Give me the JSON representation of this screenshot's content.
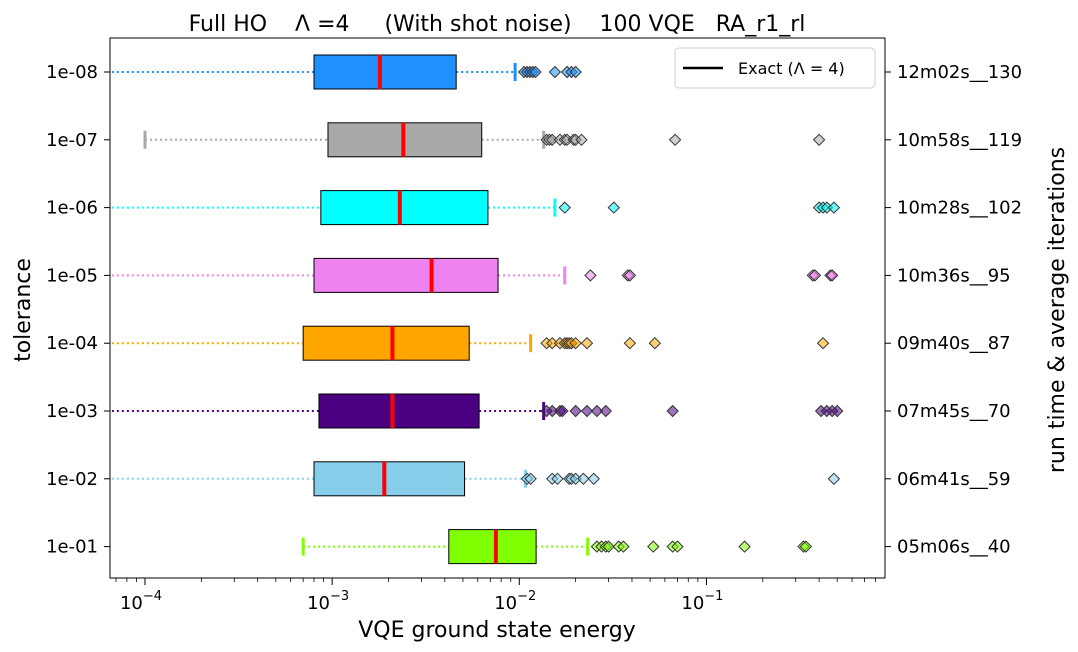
{
  "chart_data": {
    "type": "boxplot",
    "title": "Full HO    Λ =4     (With shot noise)    100 VQE   RA_r1_rl",
    "xlabel": "VQE ground state energy",
    "ylabel": "tolerance",
    "ylabel_right": "run time & average iterations",
    "xscale": "log",
    "xlim": [
      6.5e-05,
      0.9
    ],
    "x_ticks": [
      {
        "value": 0.0001,
        "base": "10",
        "exp": "−4"
      },
      {
        "value": 0.001,
        "base": "10",
        "exp": "−3"
      },
      {
        "value": 0.01,
        "base": "10",
        "exp": "−2"
      },
      {
        "value": 0.1,
        "base": "10",
        "exp": "−1"
      }
    ],
    "legend": {
      "position": "top-right",
      "entries": [
        {
          "label": "Exact (Λ = 4)",
          "color": "#000000"
        }
      ]
    },
    "series": [
      {
        "tolerance": "1e-08",
        "right_label": "12m02s__130",
        "color": "#1e90ff",
        "whisker_low": 6.65e-05,
        "q1": 0.0008,
        "median": 0.0018,
        "q3": 0.0046,
        "whisker_high": 0.0095,
        "outliers": [
          0.0106,
          0.011,
          0.0114,
          0.0118,
          0.0122,
          0.0155,
          0.018,
          0.019,
          0.02
        ]
      },
      {
        "tolerance": "1e-07",
        "right_label": "10m58s__119",
        "color": "#a9a9a9",
        "whisker_low": 0.0001,
        "q1": 0.00095,
        "median": 0.0024,
        "q3": 0.0063,
        "whisker_high": 0.0135,
        "outliers": [
          0.014,
          0.0145,
          0.015,
          0.0165,
          0.0175,
          0.018,
          0.0195,
          0.02,
          0.0215,
          0.007,
          0.068,
          0.4
        ]
      },
      {
        "tolerance": "1e-06",
        "right_label": "10m28s__102",
        "color": "#00ffff",
        "whisker_low": 6.65e-05,
        "q1": 0.00087,
        "median": 0.0023,
        "q3": 0.0068,
        "whisker_high": 0.0155,
        "outliers": [
          0.0175,
          0.032,
          0.4,
          0.42,
          0.44,
          0.48
        ]
      },
      {
        "tolerance": "1e-05",
        "right_label": "10m36s__95",
        "color": "#ee82ee",
        "whisker_low": 6.65e-05,
        "q1": 0.0008,
        "median": 0.0034,
        "q3": 0.0077,
        "whisker_high": 0.0175,
        "outliers": [
          0.024,
          0.038,
          0.039,
          0.37,
          0.38,
          0.46,
          0.47
        ]
      },
      {
        "tolerance": "1e-04",
        "right_label": "09m40s__87",
        "color": "#ffa500",
        "whisker_low": 6.65e-05,
        "q1": 0.0007,
        "median": 0.0021,
        "q3": 0.0054,
        "whisker_high": 0.0115,
        "outliers": [
          0.014,
          0.015,
          0.0165,
          0.0175,
          0.018,
          0.0185,
          0.019,
          0.02,
          0.023,
          0.039,
          0.053,
          0.42
        ]
      },
      {
        "tolerance": "1e-03",
        "right_label": "07m45s__70",
        "color": "#4b0082",
        "whisker_low": 6.65e-05,
        "q1": 0.00085,
        "median": 0.0021,
        "q3": 0.0061,
        "whisker_high": 0.0135,
        "outliers": [
          0.014,
          0.015,
          0.0165,
          0.017,
          0.02,
          0.023,
          0.026,
          0.029,
          0.066,
          0.41,
          0.44,
          0.47,
          0.5
        ]
      },
      {
        "tolerance": "1e-02",
        "right_label": "06m41s__59",
        "color": "#87ceeb",
        "whisker_low": 6.65e-05,
        "q1": 0.0008,
        "median": 0.0019,
        "q3": 0.0051,
        "whisker_high": 0.0108,
        "outliers": [
          0.011,
          0.0115,
          0.015,
          0.016,
          0.0185,
          0.019,
          0.02,
          0.022,
          0.025,
          0.48
        ]
      },
      {
        "tolerance": "1e-01",
        "right_label": "05m06s__40",
        "color": "#7fff00",
        "whisker_low": 0.0007,
        "q1": 0.0042,
        "median": 0.0075,
        "q3": 0.0123,
        "whisker_high": 0.0232,
        "outliers": [
          0.026,
          0.0275,
          0.029,
          0.03,
          0.034,
          0.036,
          0.052,
          0.066,
          0.07,
          0.16,
          0.33,
          0.34
        ]
      }
    ]
  }
}
